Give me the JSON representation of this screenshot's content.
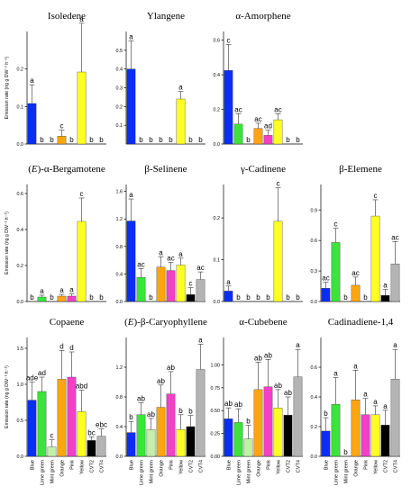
{
  "categories": [
    "Blue",
    "Lime green",
    "Mint green",
    "Orange",
    "Pink",
    "Yellow",
    "CVT2",
    "CVT4"
  ],
  "colors": [
    "#0a2ff2",
    "#3ae43a",
    "#c2f0a8",
    "#ffa510",
    "#f43fc6",
    "#ffff21",
    "#000000",
    "#b4b4b4"
  ],
  "ylabel": "Emission rate (ng g DW⁻¹ h⁻¹)",
  "chart_data": [
    {
      "type": "bar",
      "title": "Isoledene",
      "ylim": [
        0,
        0.3
      ],
      "ticks": [
        "0.0",
        "0.1",
        "0.2"
      ],
      "tick_values": [
        0,
        0.1,
        0.2
      ],
      "values": [
        0.108,
        0,
        0,
        0.021,
        0,
        0.192,
        0,
        0
      ],
      "errors": [
        0.05,
        0,
        0,
        0.016,
        0,
        0.13,
        0,
        0
      ],
      "letters": [
        "a",
        "b",
        "b",
        "c",
        "b",
        "a",
        "b",
        "b"
      ]
    },
    {
      "type": "bar",
      "title": "Ylangene",
      "ylim": [
        0,
        0.6
      ],
      "ticks": [
        "0.1",
        "0.2",
        "0.3",
        "0.4",
        "0.5"
      ],
      "tick_values": [
        0.1,
        0.2,
        0.3,
        0.4,
        0.5
      ],
      "values": [
        0.4,
        0,
        0,
        0,
        0,
        0.24,
        0,
        0
      ],
      "errors": [
        0.15,
        0,
        0,
        0,
        0,
        0.04,
        0,
        0
      ],
      "letters": [
        "a",
        "b",
        "b",
        "b",
        "b",
        "a",
        "b",
        "b"
      ]
    },
    {
      "type": "bar",
      "title": "α-Amorphene",
      "ylim": [
        0,
        0.65
      ],
      "ticks": [
        "0.0",
        "0.2",
        "0.4",
        "0.6"
      ],
      "tick_values": [
        0,
        0.2,
        0.4,
        0.6
      ],
      "values": [
        0.425,
        0.115,
        0,
        0.09,
        0.05,
        0.14,
        0,
        0
      ],
      "errors": [
        0.15,
        0.06,
        0,
        0.03,
        0.03,
        0.035,
        0,
        0
      ],
      "letters": [
        "c",
        "ac",
        "b",
        "ac",
        "ad",
        "ac",
        "b",
        "b"
      ]
    },
    {
      "type": "bar",
      "title": "(E)-α-Bergamotene",
      "ylim": [
        0,
        0.65
      ],
      "ticks": [
        "0.0",
        "0.2",
        "0.4",
        "0.6"
      ],
      "tick_values": [
        0,
        0.2,
        0.4,
        0.6
      ],
      "values": [
        0,
        0.025,
        0,
        0.03,
        0.03,
        0.445,
        0,
        0
      ],
      "errors": [
        0,
        0.01,
        0,
        0.01,
        0.012,
        0.13,
        0,
        0
      ],
      "letters": [
        "b",
        "a",
        "b",
        "a",
        "a",
        "c",
        "b",
        "b"
      ]
    },
    {
      "type": "bar",
      "title": "β-Selinene",
      "ylim": [
        0,
        1.7
      ],
      "ticks": [
        "0.0",
        "0.4",
        "0.8",
        "1.2",
        "1.6"
      ],
      "tick_values": [
        0,
        0.4,
        0.8,
        1.2,
        1.6
      ],
      "values": [
        1.17,
        0.35,
        0,
        0.5,
        0.45,
        0.53,
        0.1,
        0.32
      ],
      "errors": [
        0.32,
        0.13,
        0,
        0.15,
        0.12,
        0.1,
        0.1,
        0.11
      ],
      "letters": [
        "a",
        "ac",
        "b",
        "a",
        "ac",
        "a",
        "c",
        "ac"
      ]
    },
    {
      "type": "bar",
      "title": "γ-Cadinene",
      "ylim": [
        0,
        0.28
      ],
      "ticks": [
        "0.0",
        "0.1",
        "0.2"
      ],
      "tick_values": [
        0,
        0.1,
        0.2
      ],
      "values": [
        0.025,
        0,
        0,
        0,
        0,
        0.192,
        0,
        0
      ],
      "errors": [
        0.012,
        0,
        0,
        0,
        0,
        0.08,
        0,
        0
      ],
      "letters": [
        "a",
        "b",
        "b",
        "b",
        "b",
        "c",
        "b",
        "b"
      ]
    },
    {
      "type": "bar",
      "title": "β-Elemene",
      "ylim": [
        0,
        1.15
      ],
      "ticks": [
        "0.0",
        "0.3",
        "0.6",
        "0.9"
      ],
      "tick_values": [
        0,
        0.3,
        0.6,
        0.9
      ],
      "values": [
        0.13,
        0.58,
        0,
        0.16,
        0,
        0.84,
        0.06,
        0.37
      ],
      "errors": [
        0.06,
        0.14,
        0,
        0.08,
        0,
        0.16,
        0.06,
        0.22
      ],
      "letters": [
        "ac",
        "c",
        "b",
        "ac",
        "b",
        "c",
        "a",
        "ac"
      ]
    },
    {
      "type": "bar",
      "title": "Copaene",
      "ylim": [
        0,
        1.65
      ],
      "ticks": [
        "0.0",
        "0.5",
        "1.0",
        "1.5"
      ],
      "tick_values": [
        0,
        0.5,
        1.0,
        1.5
      ],
      "values": [
        0.78,
        0.9,
        0.13,
        1.07,
        1.1,
        0.62,
        0.22,
        0.28
      ],
      "errors": [
        0.25,
        0.2,
        0.1,
        0.4,
        0.35,
        0.3,
        0.05,
        0.1
      ],
      "letters": [
        "ade",
        "ad",
        "c",
        "d",
        "d",
        "abd",
        "bc",
        "ebc"
      ]
    },
    {
      "type": "bar",
      "title": "(E)-β-Caryophyllene",
      "ylim": [
        0,
        1.6
      ],
      "ticks": [
        "0.0",
        "0.4",
        "0.8",
        "1.2"
      ],
      "tick_values": [
        0,
        0.4,
        0.8,
        1.2
      ],
      "values": [
        0.32,
        0.56,
        0.36,
        0.66,
        0.84,
        0.36,
        0.4,
        1.17
      ],
      "errors": [
        0.15,
        0.16,
        0.15,
        0.3,
        0.3,
        0.2,
        0.15,
        0.34
      ],
      "letters": [
        "b",
        "ab",
        "ab",
        "ab",
        "ab",
        "b",
        "b",
        "a"
      ]
    },
    {
      "type": "bar",
      "title": "α-Cubebene",
      "ylim": [
        0,
        1.3
      ],
      "ticks": [
        "0.00",
        "0.25",
        "0.50",
        "0.75",
        "1.00"
      ],
      "tick_values": [
        0,
        0.25,
        0.5,
        0.75,
        1.0
      ],
      "values": [
        0.41,
        0.37,
        0.19,
        0.73,
        0.76,
        0.53,
        0.45,
        0.87
      ],
      "errors": [
        0.12,
        0.15,
        0.15,
        0.3,
        0.3,
        0.2,
        0.2,
        0.3
      ],
      "letters": [
        "ab",
        "ab",
        "b",
        "ab",
        "ab",
        "ab",
        "ab",
        "a"
      ]
    },
    {
      "type": "bar",
      "title": "Cadinadiene-1,4",
      "ylim": [
        0,
        0.8
      ],
      "ticks": [
        "0.0",
        "0.2",
        "0.4",
        "0.6"
      ],
      "tick_values": [
        0,
        0.2,
        0.4,
        0.6
      ],
      "values": [
        0.17,
        0.35,
        0,
        0.38,
        0.28,
        0.28,
        0.21,
        0.52
      ],
      "errors": [
        0.09,
        0.18,
        0,
        0.2,
        0.11,
        0.06,
        0.1,
        0.2
      ],
      "letters": [
        "b",
        "a",
        "b",
        "a",
        "a",
        "a",
        "a",
        "a"
      ]
    }
  ]
}
